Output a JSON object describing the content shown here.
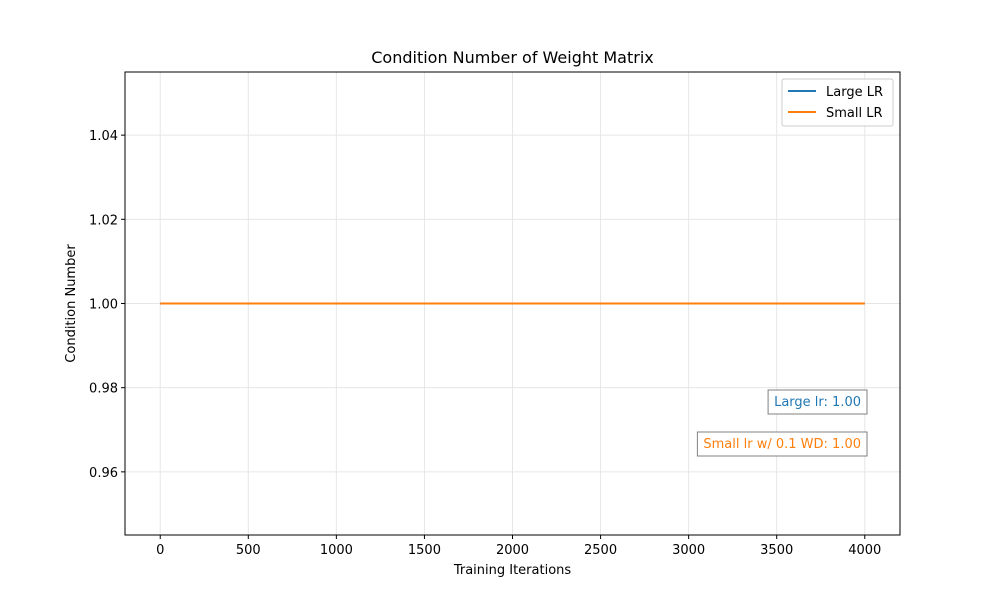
{
  "chart_data": {
    "type": "line",
    "title": "Condition Number of Weight Matrix",
    "xlabel": "Training Iterations",
    "ylabel": "Condition Number",
    "xlim": [
      -200,
      4200
    ],
    "ylim": [
      0.945,
      1.055
    ],
    "xticks": [
      0,
      500,
      1000,
      1500,
      2000,
      2500,
      3000,
      3500,
      4000
    ],
    "yticks": [
      0.96,
      0.98,
      1.0,
      1.02,
      1.04
    ],
    "ytick_labels": [
      "0.96",
      "0.98",
      "1.00",
      "1.02",
      "1.04"
    ],
    "grid": true,
    "legend_position": "top-right",
    "series": [
      {
        "name": "Large LR",
        "color": "#1f77b4",
        "x": [
          0,
          4000
        ],
        "y": [
          1.0,
          1.0
        ]
      },
      {
        "name": "Small LR",
        "color": "#ff7f0e",
        "x": [
          0,
          4000
        ],
        "y": [
          1.0,
          1.0
        ]
      }
    ],
    "annotations": [
      {
        "text": "Large lr: 1.00",
        "color": "#1f77b4"
      },
      {
        "text": "Small lr w/ 0.1 WD: 1.00",
        "color": "#ff7f0e"
      }
    ]
  }
}
